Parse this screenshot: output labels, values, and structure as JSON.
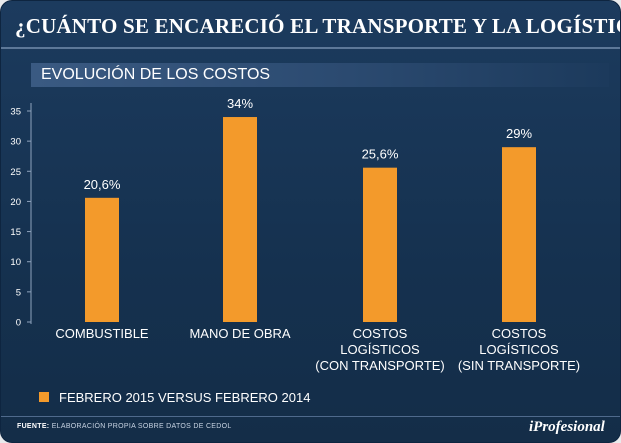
{
  "header": {
    "title": "¿CUÁNTO SE ENCARECIÓ EL TRANSPORTE Y LA LOGÍSTICA?"
  },
  "chart_data": {
    "type": "bar",
    "title": "EVOLUCIÓN DE LOS COSTOS",
    "xlabel": "",
    "ylabel": "",
    "ylim": [
      0,
      35
    ],
    "yticks": [
      0,
      5,
      10,
      15,
      20,
      25,
      30,
      35
    ],
    "grid": false,
    "legend_position": "bottom-left",
    "categories": [
      [
        "COMBUSTIBLE"
      ],
      [
        "MANO DE OBRA"
      ],
      [
        "COSTOS",
        "LOGÍSTICOS",
        "(CON TRANSPORTE)"
      ],
      [
        "COSTOS",
        "LOGÍSTICOS",
        "(SIN TRANSPORTE)"
      ]
    ],
    "series": [
      {
        "name": "FEBRERO 2015 VERSUS FEBRERO 2014",
        "values": [
          20.6,
          34,
          25.6,
          29
        ],
        "labels": [
          "20,6%",
          "34%",
          "25,6%",
          "29%"
        ],
        "color": "#f39a2b"
      }
    ]
  },
  "footer": {
    "source_label": "FUENTE:",
    "source_text": "ELABORACIÓN PROPIA SOBRE DATOS DE CEDOL",
    "brand": "iProfesional"
  }
}
